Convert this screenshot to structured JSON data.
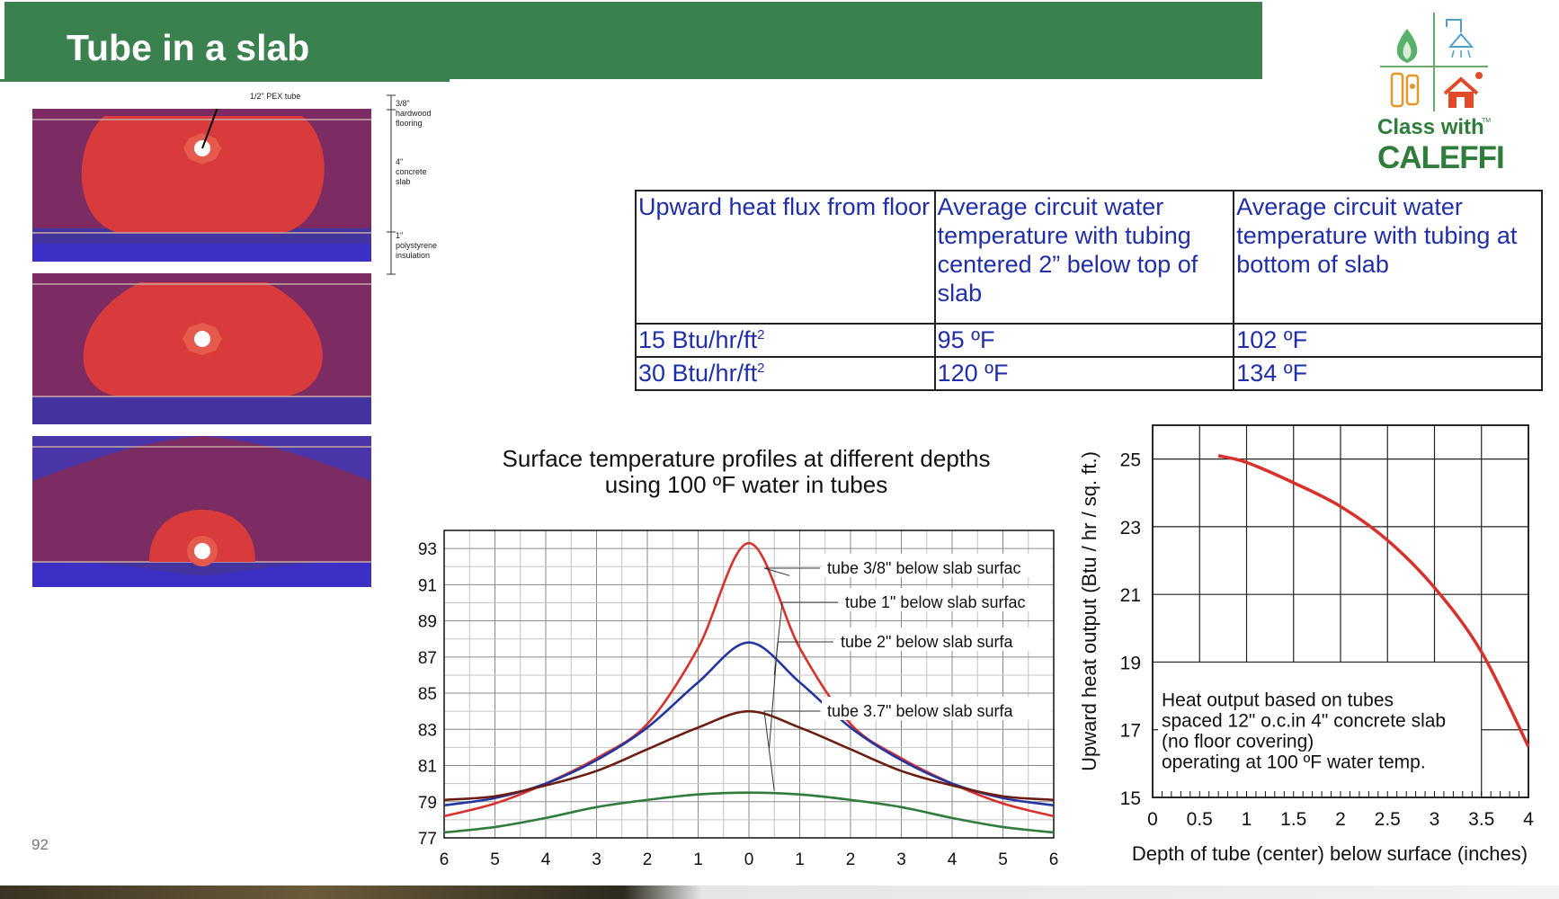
{
  "slide": {
    "title": "Tube in a slab",
    "page_number": "92",
    "brand_color": "#3b8150"
  },
  "logo": {
    "line1": "Class with",
    "line2": "CALEFFI",
    "tm": "TM",
    "icons": [
      "flame-icon",
      "shower-icon",
      "radiator-icon",
      "house-icon"
    ]
  },
  "slab_diagram": {
    "pex_label": "1/2\" PEX tube",
    "floor_label": "3/8\"\nhardwood\nflooring",
    "slab_label": "4\"\nconcrete\nslab",
    "insul_label": "1\"\npolystyrene\ninsulation"
  },
  "table": {
    "headers": [
      "Upward heat flux from floor",
      "Average circuit water temperature with tubing centered 2” below top of slab",
      "Average circuit water temperature with tubing at bottom of slab"
    ],
    "rows": [
      {
        "flux": "15 Btu/hr/ft",
        "sup": "2",
        "centered": "95 ºF",
        "bottom": "102 ºF"
      },
      {
        "flux": "30 Btu/hr/ft",
        "sup": "2",
        "centered": "120 ºF",
        "bottom": "134 ºF"
      }
    ]
  },
  "chart_data": [
    {
      "type": "line",
      "title": "Surface temperature profiles at different depths using 100 ºF water in tubes",
      "title_line1": "Surface temperature profiles at different depths",
      "title_line2": "using 100 ºF water in tubes",
      "xlabel": "",
      "ylabel": "",
      "xlim": [
        -6,
        6
      ],
      "ylim": [
        77,
        94
      ],
      "x_tick_labels": [
        "6",
        "5",
        "4",
        "3",
        "2",
        "1",
        "0",
        "1",
        "2",
        "3",
        "4",
        "5",
        "6"
      ],
      "y_ticks": [
        77,
        79,
        81,
        83,
        85,
        87,
        89,
        91,
        93
      ],
      "grid": true,
      "x": [
        -6,
        -5,
        -4,
        -3,
        -2,
        -1,
        0,
        1,
        2,
        3,
        4,
        5,
        6
      ],
      "series": [
        {
          "name": "tube 3/8\" below slab surfac",
          "color": "#d8302b",
          "values": [
            78.2,
            78.9,
            80.0,
            81.4,
            83.3,
            87.5,
            93.3,
            87.5,
            83.3,
            81.4,
            80.0,
            78.9,
            78.2
          ]
        },
        {
          "name": "tube 1\" below slab surfac",
          "color": "#2235a0",
          "values": [
            78.8,
            79.2,
            80.0,
            81.3,
            83.1,
            85.6,
            87.8,
            85.6,
            83.1,
            81.3,
            80.0,
            79.2,
            78.8
          ]
        },
        {
          "name": "tube 2\" below slab surfa",
          "color": "#6b1d12",
          "values": [
            79.1,
            79.3,
            79.9,
            80.7,
            81.9,
            83.1,
            84.0,
            83.1,
            81.9,
            80.7,
            79.9,
            79.3,
            79.1
          ]
        },
        {
          "name": "tube 3.7\" below slab surfa",
          "color": "#2e7d3a",
          "values": [
            77.3,
            77.6,
            78.1,
            78.7,
            79.1,
            79.4,
            79.5,
            79.4,
            79.1,
            78.7,
            78.1,
            77.6,
            77.3
          ]
        }
      ]
    },
    {
      "type": "line",
      "title": "",
      "xlabel": "Depth of tube (center) below surface (inches)",
      "ylabel": "Upward heat output (Btu / hr / sq. ft.)",
      "xlim": [
        0,
        4
      ],
      "ylim": [
        15,
        26
      ],
      "x_ticks": [
        0,
        0.5,
        1,
        1.5,
        2,
        2.5,
        3,
        3.5,
        4
      ],
      "x_tick_labels": [
        "0",
        "0.5",
        "1",
        "1.5",
        "2",
        "2.5",
        "3",
        "3.5",
        "4"
      ],
      "y_ticks": [
        15,
        17,
        19,
        21,
        23,
        25
      ],
      "grid": true,
      "annotation": [
        "Heat output based on tubes",
        "spaced 12\" o.c.in 4\" concrete slab",
        "(no floor covering)",
        "operating at 100 ºF water temp."
      ],
      "x": [
        0.7,
        1.0,
        1.5,
        2.0,
        2.5,
        3.0,
        3.5,
        4.0
      ],
      "series": [
        {
          "name": "",
          "color": "#d8302b",
          "values": [
            25.1,
            24.9,
            24.3,
            23.6,
            22.6,
            21.2,
            19.3,
            16.5
          ]
        }
      ]
    }
  ]
}
